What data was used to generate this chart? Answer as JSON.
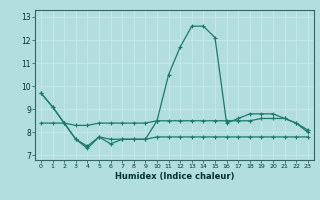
{
  "xlabel": "Humidex (Indice chaleur)",
  "background_color": "#b2dede",
  "grid_color": "#c8e8e8",
  "line_color": "#1a7a6a",
  "xlim": [
    -0.5,
    23.5
  ],
  "ylim": [
    6.8,
    13.3
  ],
  "xticks": [
    0,
    1,
    2,
    3,
    4,
    5,
    6,
    7,
    8,
    9,
    10,
    11,
    12,
    13,
    14,
    15,
    16,
    17,
    18,
    19,
    20,
    21,
    22,
    23
  ],
  "yticks": [
    7,
    8,
    9,
    10,
    11,
    12,
    13
  ],
  "series": [
    [
      9.7,
      9.1,
      8.4,
      7.7,
      7.4,
      7.8,
      7.7,
      7.7,
      7.7,
      7.7,
      8.5,
      10.5,
      11.7,
      12.6,
      12.6,
      12.1,
      8.4,
      8.6,
      8.8,
      8.8,
      8.8,
      8.6,
      8.4,
      8.1
    ],
    [
      9.7,
      9.1,
      8.4,
      8.3,
      8.3,
      8.4,
      8.4,
      8.4,
      8.4,
      8.4,
      8.5,
      8.5,
      8.5,
      8.5,
      8.5,
      8.5,
      8.5,
      8.5,
      8.5,
      8.6,
      8.6,
      8.6,
      8.4,
      8.0
    ],
    [
      8.4,
      8.4,
      8.4,
      7.7,
      7.3,
      7.8,
      7.5,
      7.7,
      7.7,
      7.7,
      7.8,
      7.8,
      7.8,
      7.8,
      7.8,
      7.8,
      7.8,
      7.8,
      7.8,
      7.8,
      7.8,
      7.8,
      7.8,
      7.8
    ]
  ]
}
